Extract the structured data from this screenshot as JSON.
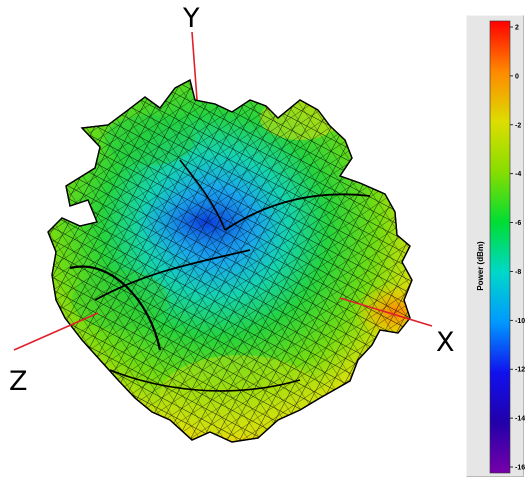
{
  "chart_data": {
    "type": "3d-surface",
    "axes": {
      "x_label": "X",
      "y_label": "Y",
      "z_label": "Z"
    },
    "colorbar": {
      "title": "Power (dBm)",
      "range": [
        -16,
        2
      ],
      "ticks": [
        "2",
        "0",
        "-2",
        "-4",
        "-6",
        "-8",
        "-10",
        "-12",
        "-14",
        "-16"
      ],
      "tick_values": [
        2,
        0,
        -2,
        -4,
        -6,
        -8,
        -10,
        -12,
        -14,
        -16
      ],
      "colormap": [
        {
          "value": 2,
          "color": "#ff0000"
        },
        {
          "value": 0,
          "color": "#ff8800"
        },
        {
          "value": -2,
          "color": "#dddd00"
        },
        {
          "value": -4,
          "color": "#88dd00"
        },
        {
          "value": -6,
          "color": "#00dd33"
        },
        {
          "value": -8,
          "color": "#00d8c8"
        },
        {
          "value": -10,
          "color": "#0099ff"
        },
        {
          "value": -12,
          "color": "#1111ee"
        },
        {
          "value": -14,
          "color": "#2200aa"
        },
        {
          "value": -16,
          "color": "#7700aa"
        }
      ]
    }
  }
}
